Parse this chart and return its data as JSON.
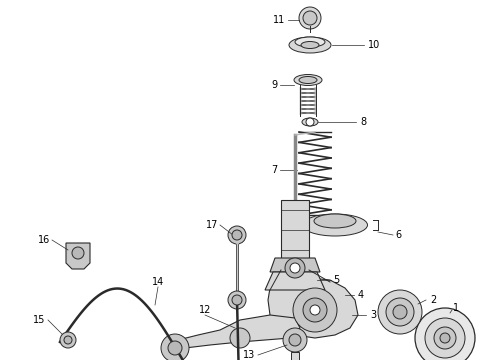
{
  "background": "#ffffff",
  "line_color": "#2a2a2a",
  "text_color": "#000000",
  "fig_width": 4.9,
  "fig_height": 3.6,
  "dpi": 100,
  "label_fontsize": 7.0
}
